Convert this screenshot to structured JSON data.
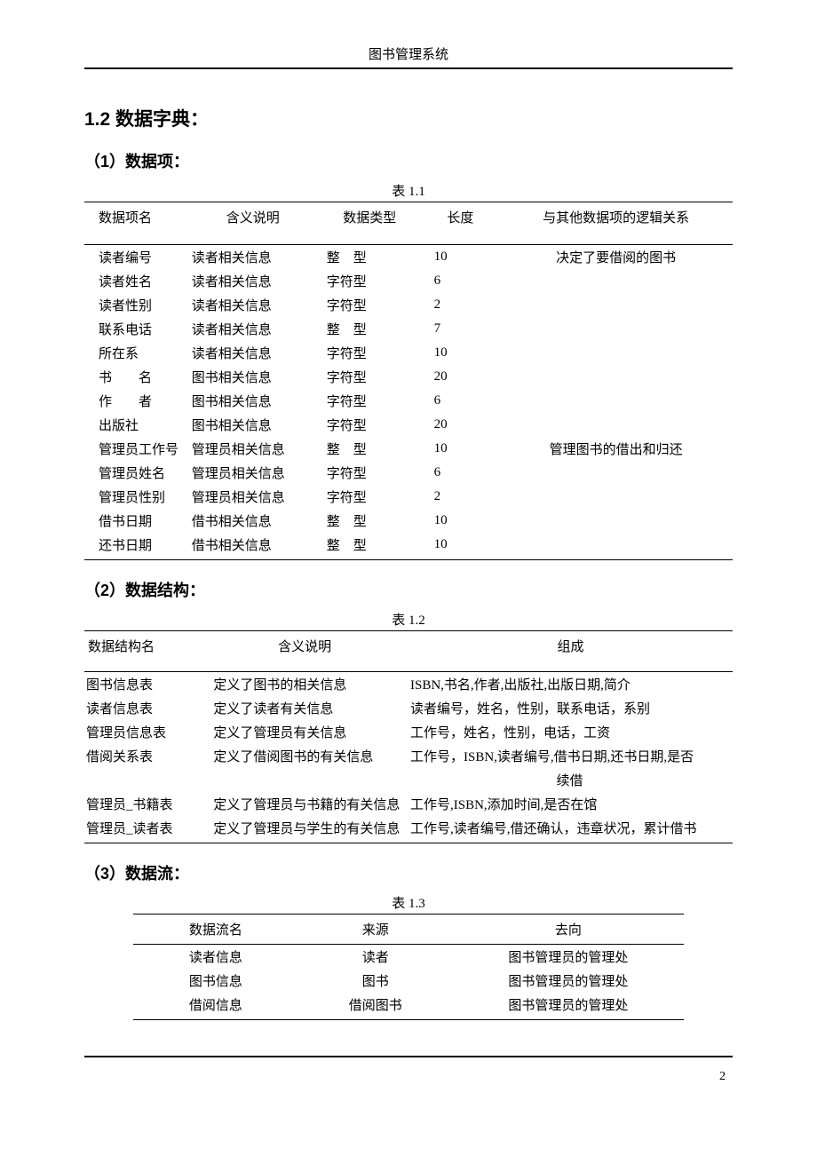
{
  "header": {
    "title": "图书管理系统"
  },
  "section": {
    "heading": "1.2 数据字典："
  },
  "sub1": {
    "heading": "（1）数据项：",
    "caption": "表 1.1",
    "columns": [
      "数据项名",
      "含义说明",
      "数据类型",
      "长度",
      "与其他数据项的逻辑关系"
    ],
    "rows": [
      [
        "读者编号",
        "读者相关信息",
        "整　型",
        "10",
        "决定了要借阅的图书"
      ],
      [
        "读者姓名",
        "读者相关信息",
        "字符型",
        "6",
        ""
      ],
      [
        "读者性别",
        "读者相关信息",
        "字符型",
        "2",
        ""
      ],
      [
        "联系电话",
        "读者相关信息",
        "整　型",
        "7",
        ""
      ],
      [
        "所在系",
        "读者相关信息",
        "字符型",
        "10",
        ""
      ],
      [
        "书　　名",
        "图书相关信息",
        "字符型",
        "20",
        ""
      ],
      [
        "作　　者",
        "图书相关信息",
        "字符型",
        "6",
        ""
      ],
      [
        "出版社",
        "图书相关信息",
        "字符型",
        "20",
        ""
      ],
      [
        "管理员工作号",
        "管理员相关信息",
        "整　型",
        "10",
        "管理图书的借出和归还"
      ],
      [
        "管理员姓名",
        "管理员相关信息",
        "字符型",
        "6",
        ""
      ],
      [
        "管理员性别",
        "管理员相关信息",
        "字符型",
        "2",
        ""
      ],
      [
        "借书日期",
        "借书相关信息",
        "整　型",
        "10",
        ""
      ],
      [
        "还书日期",
        "借书相关信息",
        "整　型",
        "10",
        ""
      ]
    ]
  },
  "sub2": {
    "heading": "（2）数据结构：",
    "caption": "表 1.2",
    "columns": [
      "数据结构名",
      "含义说明",
      "组成"
    ],
    "rows": [
      {
        "c0": "图书信息表",
        "c1": "定义了图书的相关信息",
        "c2": "ISBN,书名,作者,出版社,出版日期,简介"
      },
      {
        "c0": "读者信息表",
        "c1": "定义了读者有关信息",
        "c2": "读者编号，姓名，性别，联系电话，系别"
      },
      {
        "c0": "管理员信息表",
        "c1": "定义了管理员有关信息",
        "c2": "工作号，姓名，性别，电话，工资"
      },
      {
        "c0": "借阅关系表",
        "c1": "定义了借阅图书的有关信息",
        "c2": "工作号，ISBN,读者编号,借书日期,还书日期,是否"
      },
      {
        "c0": "",
        "c1": "",
        "c2": "续借",
        "cont": true
      },
      {
        "c0": "管理员_书籍表",
        "c1": "定义了管理员与书籍的有关信息",
        "c2": "工作号,ISBN,添加时间,是否在馆"
      },
      {
        "c0": "管理员_读者表",
        "c1": "定义了管理员与学生的有关信息",
        "c2": "工作号,读者编号,借还确认，违章状况，累计借书"
      }
    ]
  },
  "sub3": {
    "heading": "（3）数据流：",
    "caption": "表 1.3",
    "columns": [
      "数据流名",
      "来源",
      "去向"
    ],
    "rows": [
      [
        "读者信息",
        "读者",
        "图书管理员的管理处"
      ],
      [
        "图书信息",
        "图书",
        "图书管理员的管理处"
      ],
      [
        "借阅信息",
        "借阅图书",
        "图书管理员的管理处"
      ]
    ]
  },
  "page_number": "2"
}
